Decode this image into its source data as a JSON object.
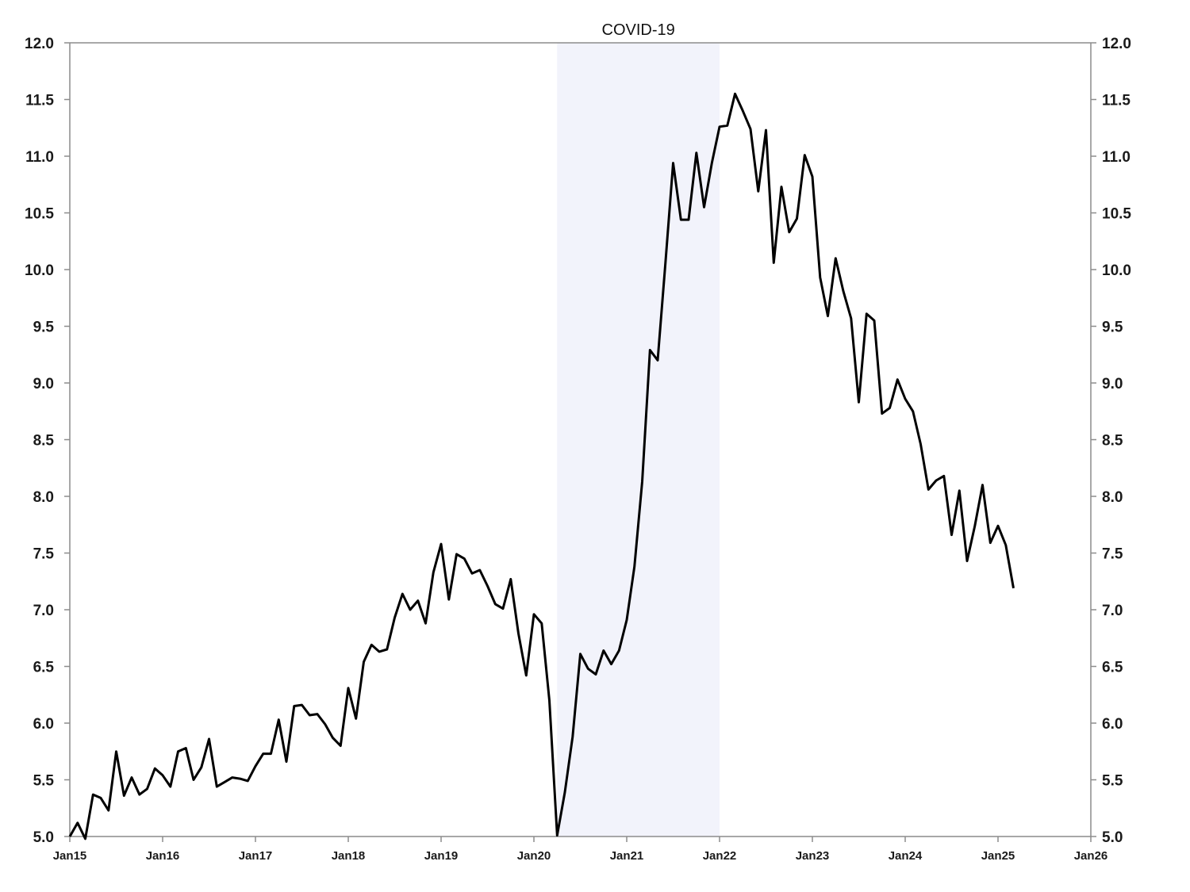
{
  "chart_data": {
    "type": "line",
    "title": "",
    "xlabel": "",
    "ylabel": "",
    "colors": {
      "line": "#000000",
      "shade": "#f2f3fb",
      "axis": "#8c8c8c"
    },
    "ylim": [
      5.0,
      12.0
    ],
    "y_ticks": [
      "5.0",
      "5.5",
      "6.0",
      "6.5",
      "7.0",
      "7.5",
      "8.0",
      "8.5",
      "9.0",
      "9.5",
      "10.0",
      "10.5",
      "11.0",
      "11.5",
      "12.0"
    ],
    "x_range": [
      "2015-01",
      "2026-01"
    ],
    "x_ticks": [
      {
        "date": "2015-01",
        "label": "Jan15"
      },
      {
        "date": "2016-01",
        "label": "Jan16"
      },
      {
        "date": "2017-01",
        "label": "Jan17"
      },
      {
        "date": "2018-01",
        "label": "Jan18"
      },
      {
        "date": "2019-01",
        "label": "Jan19"
      },
      {
        "date": "2020-01",
        "label": "Jan20"
      },
      {
        "date": "2021-01",
        "label": "Jan21"
      },
      {
        "date": "2022-01",
        "label": "Jan22"
      },
      {
        "date": "2023-01",
        "label": "Jan23"
      },
      {
        "date": "2024-01",
        "label": "Jan24"
      },
      {
        "date": "2025-01",
        "label": "Jan25"
      },
      {
        "date": "2026-01",
        "label": "Jan26"
      }
    ],
    "shaded_region": {
      "label": "COVID-19",
      "start": "2020-04",
      "end": "2022-01"
    },
    "grid": false,
    "series": [
      {
        "x": [
          "2015-01",
          "2015-02",
          "2015-03",
          "2015-04",
          "2015-05",
          "2015-06",
          "2015-07",
          "2015-08",
          "2015-09",
          "2015-10",
          "2015-11",
          "2015-12",
          "2016-01",
          "2016-02",
          "2016-03",
          "2016-04",
          "2016-05",
          "2016-06",
          "2016-07",
          "2016-08",
          "2016-09",
          "2016-10",
          "2016-11",
          "2016-12",
          "2017-01",
          "2017-02",
          "2017-03",
          "2017-04",
          "2017-05",
          "2017-06",
          "2017-07",
          "2017-08",
          "2017-09",
          "2017-10",
          "2017-11",
          "2017-12",
          "2018-01",
          "2018-02",
          "2018-03",
          "2018-04",
          "2018-05",
          "2018-06",
          "2018-07",
          "2018-08",
          "2018-09",
          "2018-10",
          "2018-11",
          "2018-12",
          "2019-01",
          "2019-02",
          "2019-03",
          "2019-04",
          "2019-05",
          "2019-06",
          "2019-07",
          "2019-08",
          "2019-09",
          "2019-10",
          "2019-11",
          "2019-12",
          "2020-01",
          "2020-02",
          "2020-03",
          "2020-04",
          "2020-05",
          "2020-06",
          "2020-07",
          "2020-08",
          "2020-09",
          "2020-10",
          "2020-11",
          "2020-12",
          "2021-01",
          "2021-02",
          "2021-03",
          "2021-04",
          "2021-05",
          "2021-06",
          "2021-07",
          "2021-08",
          "2021-09",
          "2021-10",
          "2021-11",
          "2021-12",
          "2022-01",
          "2022-02",
          "2022-03",
          "2022-04",
          "2022-05",
          "2022-06",
          "2022-07",
          "2022-08",
          "2022-09",
          "2022-10",
          "2022-11",
          "2022-12",
          "2023-01",
          "2023-02",
          "2023-03",
          "2023-04",
          "2023-05",
          "2023-06",
          "2023-07",
          "2023-08",
          "2023-09",
          "2023-10",
          "2023-11",
          "2023-12",
          "2024-01",
          "2024-02",
          "2024-03",
          "2024-04",
          "2024-05",
          "2024-06",
          "2024-07",
          "2024-08",
          "2024-09",
          "2024-10",
          "2024-11",
          "2024-12",
          "2025-01",
          "2025-02",
          "2025-03"
        ],
        "values": [
          5.0,
          5.12,
          4.98,
          5.37,
          5.34,
          5.23,
          5.75,
          5.36,
          5.52,
          5.37,
          5.42,
          5.6,
          5.54,
          5.44,
          5.75,
          5.78,
          5.5,
          5.61,
          5.86,
          5.44,
          5.48,
          5.52,
          5.51,
          5.49,
          5.62,
          5.73,
          5.73,
          6.03,
          5.66,
          6.15,
          6.16,
          6.07,
          6.08,
          5.99,
          5.87,
          5.8,
          6.31,
          6.04,
          6.54,
          6.69,
          6.63,
          6.65,
          6.93,
          7.14,
          7.0,
          7.08,
          6.88,
          7.33,
          7.58,
          7.09,
          7.49,
          7.45,
          7.32,
          7.35,
          7.21,
          7.05,
          7.01,
          7.27,
          6.79,
          6.42,
          6.96,
          6.88,
          6.2,
          5.01,
          5.39,
          5.88,
          6.61,
          6.48,
          6.43,
          6.64,
          6.52,
          6.64,
          6.91,
          7.38,
          8.13,
          9.29,
          9.2,
          10.06,
          10.94,
          10.44,
          10.44,
          11.03,
          10.55,
          10.94,
          11.26,
          11.27,
          11.55,
          11.4,
          11.24,
          10.69,
          11.23,
          10.06,
          10.73,
          10.33,
          10.45,
          11.01,
          10.82,
          9.93,
          9.59,
          10.1,
          9.81,
          9.57,
          8.83,
          9.61,
          9.55,
          8.73,
          8.78,
          9.03,
          8.86,
          8.75,
          8.46,
          8.06,
          8.14,
          8.18,
          7.66,
          8.05,
          7.43,
          7.74,
          8.1,
          7.59,
          7.74,
          7.57,
          7.19
        ]
      }
    ]
  }
}
